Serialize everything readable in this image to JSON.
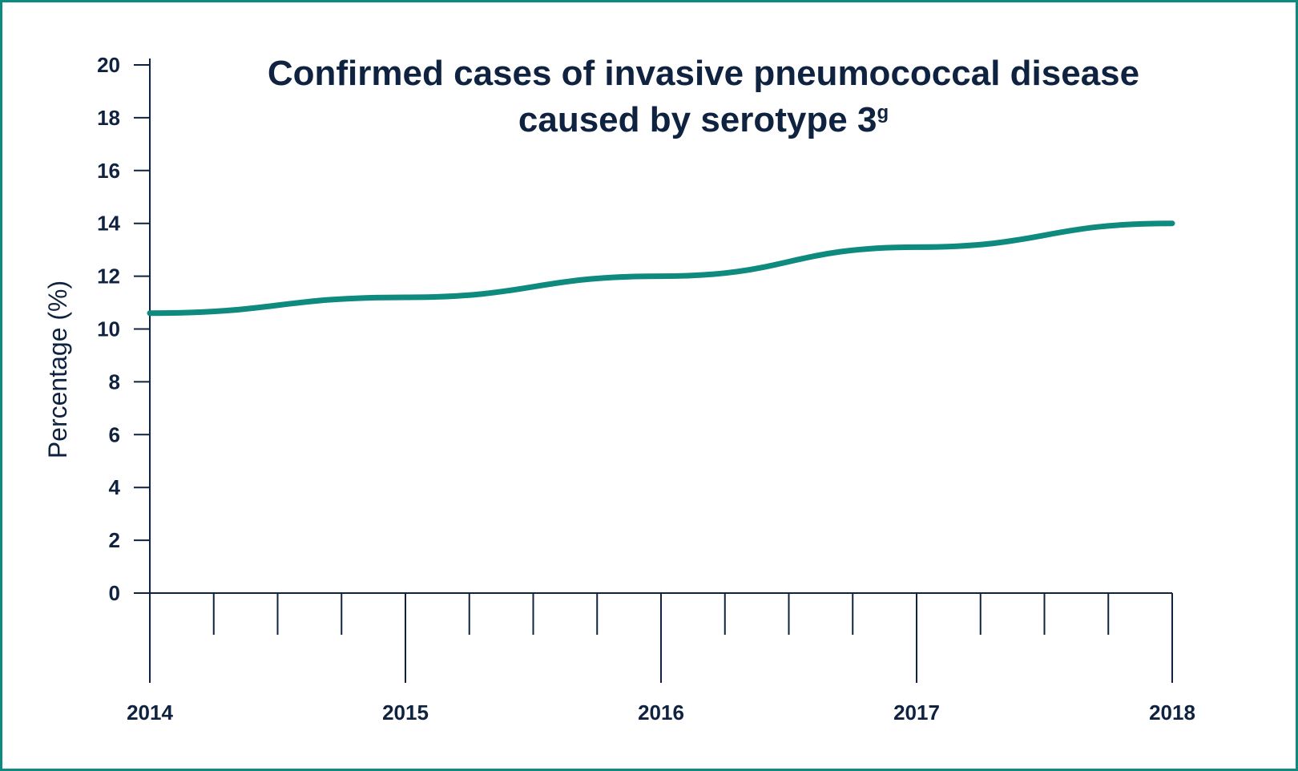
{
  "chart_data": {
    "type": "line",
    "title_line1": "Confirmed cases of invasive pneumococcal disease",
    "title_line2": "caused by serotype 3",
    "title_superscript": "g",
    "xlabel": "",
    "ylabel": "Percentage (%)",
    "x": [
      2014,
      2015,
      2016,
      2017,
      2018
    ],
    "x_tick_labels": [
      "2014",
      "2015",
      "2016",
      "2017",
      "2018"
    ],
    "y_ticks": [
      0,
      2,
      4,
      6,
      8,
      10,
      12,
      14,
      16,
      18,
      20
    ],
    "y_tick_labels": [
      "0",
      "2",
      "4",
      "6",
      "8",
      "10",
      "12",
      "14",
      "16",
      "18",
      "20"
    ],
    "ylim": [
      0,
      20
    ],
    "xlim": [
      2014,
      2018
    ],
    "minor_ticks_per_year": 4,
    "grid": false,
    "series": [
      {
        "values": [
          10.6,
          11.2,
          12.0,
          13.1,
          14.0
        ],
        "color": "#0f8a7e"
      }
    ],
    "colors": {
      "line": "#0f8a7e",
      "axis": "#0f2340",
      "text": "#0f2340",
      "border": "#0f8a7e"
    }
  }
}
